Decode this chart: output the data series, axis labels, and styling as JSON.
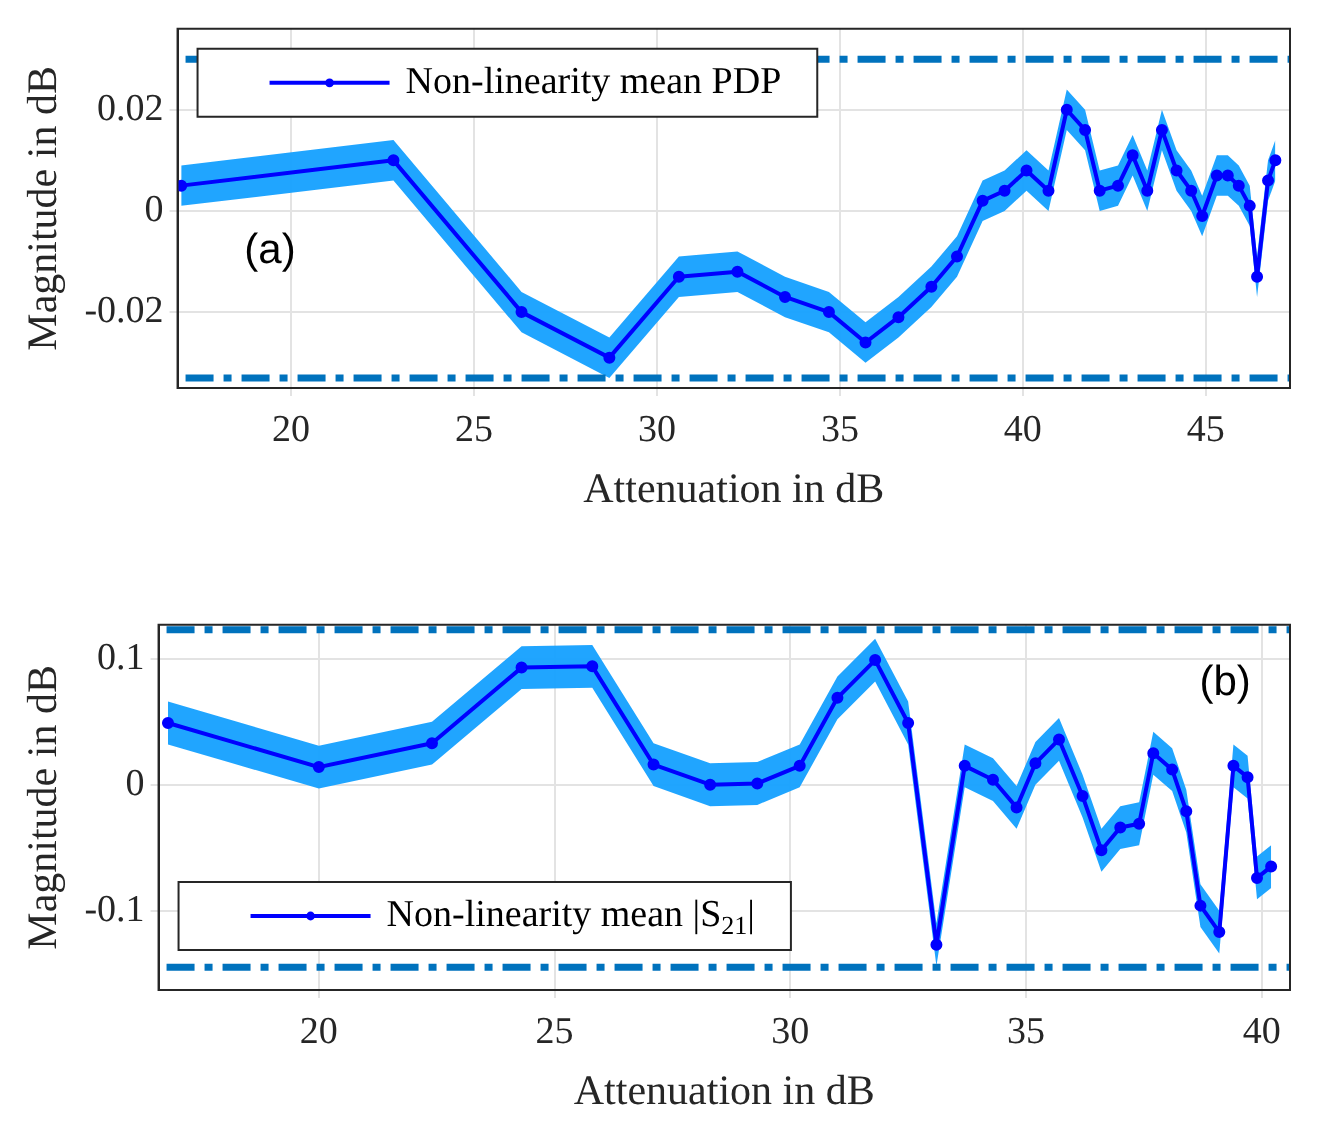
{
  "chart_data": [
    {
      "type": "line",
      "xlabel": "Attenuation in dB",
      "ylabel": "Magnitude in dB",
      "xlim": [
        16.9,
        47.3
      ],
      "xticks": [
        20,
        25,
        30,
        35,
        40,
        45
      ],
      "ylim": [
        -0.035,
        0.036
      ],
      "yticks": [
        -0.02,
        0,
        0.02
      ],
      "grid": true,
      "legend": "top left",
      "marker": "circle",
      "line_style": "solid",
      "series": [
        {
          "name": "Non-linearity mean PDP",
          "color": "#0000ff",
          "x": [
            17,
            22.8,
            26.3,
            28.7,
            30.6,
            32.2,
            33.5,
            34.7,
            35.7,
            36.6,
            37.5,
            38.2,
            38.9,
            39.5,
            40.1,
            40.7,
            41.2,
            41.7,
            42.1,
            42.6,
            43,
            43.4,
            43.8,
            44.2,
            44.6,
            44.9,
            45.3,
            45.6,
            45.9,
            46.2,
            46.4,
            46.7,
            46.9
          ],
          "values": [
            0.005,
            0.01,
            -0.02,
            -0.029,
            -0.013,
            -0.012,
            -0.017,
            -0.02,
            -0.026,
            -0.021,
            -0.015,
            -0.009,
            0.002,
            0.004,
            0.008,
            0.004,
            0.02,
            0.016,
            0.004,
            0.005,
            0.011,
            0.004,
            0.016,
            0.008,
            0.004,
            -0.001,
            0.007,
            0.007,
            0.005,
            0.001,
            -0.013,
            0.006,
            0.01
          ],
          "lower": [
            0.001,
            0.006,
            -0.024,
            -0.033,
            -0.017,
            -0.016,
            -0.021,
            -0.024,
            -0.03,
            -0.025,
            -0.019,
            -0.013,
            -0.002,
            0,
            0.004,
            0,
            0.016,
            0.012,
            0,
            0.001,
            0.007,
            0,
            0.012,
            0.004,
            0,
            -0.005,
            0.003,
            0.003,
            0.001,
            -0.003,
            -0.017,
            0.002,
            0.006
          ],
          "upper": [
            0.009,
            0.014,
            -0.016,
            -0.025,
            -0.009,
            -0.008,
            -0.013,
            -0.016,
            -0.022,
            -0.017,
            -0.011,
            -0.005,
            0.006,
            0.008,
            0.012,
            0.008,
            0.024,
            0.02,
            0.008,
            0.009,
            0.015,
            0.008,
            0.02,
            0.012,
            0.008,
            0.003,
            0.011,
            0.011,
            0.009,
            0.005,
            -0.009,
            0.01,
            0.014
          ]
        }
      ],
      "ref_lines": [
        {
          "axis": "y",
          "value": 0.03,
          "color": "#0072bd",
          "line_style": "dashed"
        },
        {
          "axis": "y",
          "value": -0.033,
          "color": "#0072bd",
          "line_style": "dashed"
        }
      ],
      "annotations": [
        "(a)"
      ]
    },
    {
      "type": "line",
      "xlabel": "Attenuation in dB",
      "ylabel": "Magnitude in dB",
      "xlim": [
        16.6,
        40.6
      ],
      "xticks": [
        20,
        25,
        30,
        35,
        40
      ],
      "ylim": [
        -0.163,
        0.127
      ],
      "yticks": [
        -0.1,
        0,
        0.1
      ],
      "grid": true,
      "legend": "bottom left",
      "marker": "circle",
      "line_style": "solid",
      "series": [
        {
          "name": "Non-linearity mean |S$_{21}$|",
          "color": "#0000ff",
          "x": [
            16.8,
            20,
            22.4,
            24.3,
            25.8,
            27.1,
            28.3,
            29.3,
            30.2,
            31,
            31.8,
            32.5,
            33.1,
            33.7,
            34.3,
            34.8,
            35.2,
            35.7,
            36.2,
            36.6,
            37,
            37.4,
            37.7,
            38.1,
            38.4,
            38.7,
            39.1,
            39.4,
            39.7,
            39.9,
            40.2
          ],
          "values": [
            0.049,
            0.014,
            0.033,
            0.093,
            0.094,
            0.016,
            0,
            0.001,
            0.015,
            0.069,
            0.099,
            0.049,
            -0.127,
            0.015,
            0.004,
            -0.018,
            0.017,
            0.036,
            -0.009,
            -0.052,
            -0.034,
            -0.031,
            0.025,
            0.012,
            -0.021,
            -0.096,
            -0.117,
            0.015,
            0.006,
            -0.074,
            -0.065
          ],
          "lower": [
            0.032,
            -0.003,
            0.016,
            0.076,
            0.077,
            -0.001,
            -0.017,
            -0.016,
            -0.002,
            0.052,
            0.082,
            0.032,
            -0.144,
            -0.002,
            -0.013,
            -0.035,
            0,
            0.019,
            -0.026,
            -0.069,
            -0.051,
            -0.048,
            0.008,
            -0.005,
            -0.038,
            -0.113,
            -0.134,
            -0.002,
            -0.011,
            -0.091,
            -0.082
          ],
          "upper": [
            0.066,
            0.031,
            0.05,
            0.11,
            0.111,
            0.033,
            0.017,
            0.018,
            0.032,
            0.086,
            0.116,
            0.066,
            -0.11,
            0.032,
            0.021,
            -0.001,
            0.034,
            0.053,
            0.008,
            -0.035,
            -0.017,
            -0.014,
            0.042,
            0.029,
            -0.004,
            -0.079,
            -0.1,
            0.032,
            0.023,
            -0.057,
            -0.048
          ]
        }
      ],
      "ref_lines": [
        {
          "axis": "y",
          "value": 0.123,
          "color": "#0072bd",
          "line_style": "dashed"
        },
        {
          "axis": "y",
          "value": -0.145,
          "color": "#0072bd",
          "line_style": "dashed"
        }
      ],
      "annotations": [
        "(b)"
      ]
    }
  ]
}
